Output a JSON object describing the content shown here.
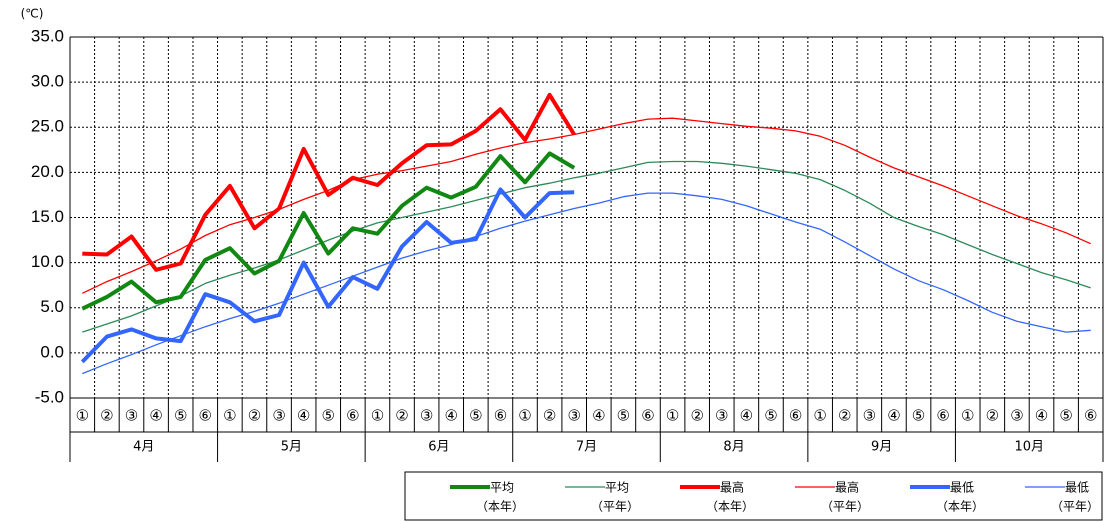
{
  "chart_data": {
    "type": "line",
    "unit": "(℃)",
    "categories": [
      "①",
      "②",
      "③",
      "④",
      "⑤",
      "⑥",
      "①",
      "②",
      "③",
      "④",
      "⑤",
      "⑥",
      "①",
      "②",
      "③",
      "④",
      "⑤",
      "⑥",
      "①",
      "②",
      "③",
      "④",
      "⑤",
      "⑥",
      "①",
      "②",
      "③",
      "④",
      "⑤",
      "⑥",
      "①",
      "②",
      "③",
      "④",
      "⑤",
      "⑥",
      "①",
      "②",
      "③",
      "④",
      "⑤",
      "⑥"
    ],
    "months": [
      "4月",
      "5月",
      "6月",
      "7月",
      "8月",
      "9月",
      "10月"
    ],
    "ylim": [
      -5,
      35
    ],
    "yticks": [
      {
        "value": -5,
        "label": "-5.0"
      },
      {
        "value": 0,
        "label": "0.0"
      },
      {
        "value": 5,
        "label": "5.0"
      },
      {
        "value": 10,
        "label": "10.0"
      },
      {
        "value": 15,
        "label": "15.0"
      },
      {
        "value": 20,
        "label": "20.0"
      },
      {
        "value": 25,
        "label": "25.0"
      },
      {
        "value": 30,
        "label": "30.0"
      },
      {
        "value": 35,
        "label": "35.0"
      }
    ],
    "grid": true,
    "series": [
      {
        "name": "平均",
        "period": "（本年）",
        "color": "#118811",
        "bold": true,
        "values": [
          4.9,
          6.2,
          7.9,
          5.6,
          6.2,
          10.3,
          11.6,
          8.8,
          10.2,
          15.5,
          11.0,
          13.8,
          13.2,
          16.3,
          18.3,
          17.2,
          18.4,
          21.8,
          18.9,
          22.1,
          20.5,
          null,
          null,
          null,
          null,
          null,
          null,
          null,
          null,
          null,
          null,
          null,
          null,
          null,
          null,
          null,
          null,
          null,
          null,
          null,
          null,
          null
        ]
      },
      {
        "name": "平均",
        "period": "（平年）",
        "color": "#2e8b57",
        "bold": false,
        "values": [
          2.3,
          3.2,
          4.1,
          5.2,
          6.3,
          7.7,
          8.6,
          9.4,
          10.3,
          11.4,
          12.5,
          13.5,
          14.4,
          15.0,
          15.6,
          16.2,
          16.9,
          17.6,
          18.3,
          18.8,
          19.4,
          19.9,
          20.5,
          21.1,
          21.2,
          21.2,
          21.0,
          20.7,
          20.3,
          19.9,
          19.2,
          18.0,
          16.6,
          15.0,
          14.0,
          13.1,
          12.0,
          10.9,
          9.9,
          8.9,
          8.1,
          7.2
        ]
      },
      {
        "name": "最高",
        "period": "（本年）",
        "color": "#ff0000",
        "bold": true,
        "values": [
          11.0,
          10.9,
          12.9,
          9.2,
          9.9,
          15.3,
          18.5,
          13.8,
          16.0,
          22.6,
          17.5,
          19.4,
          18.6,
          21.0,
          23.0,
          23.1,
          24.6,
          27.0,
          23.6,
          28.6,
          24.2,
          null,
          null,
          null,
          null,
          null,
          null,
          null,
          null,
          null,
          null,
          null,
          null,
          null,
          null,
          null,
          null,
          null,
          null,
          null,
          null,
          null
        ]
      },
      {
        "name": "最高",
        "period": "（平年）",
        "color": "#ff0000",
        "bold": false,
        "values": [
          6.6,
          7.9,
          9.0,
          10.2,
          11.5,
          13.0,
          14.2,
          15.0,
          15.9,
          17.0,
          18.0,
          19.2,
          19.8,
          20.2,
          20.7,
          21.2,
          22.0,
          22.7,
          23.3,
          23.7,
          24.2,
          24.8,
          25.4,
          25.9,
          26.0,
          25.7,
          25.4,
          25.1,
          24.9,
          24.6,
          24.0,
          23.0,
          21.7,
          20.5,
          19.5,
          18.5,
          17.4,
          16.3,
          15.2,
          14.3,
          13.3,
          12.1
        ]
      },
      {
        "name": "最低",
        "period": "（本年）",
        "color": "#3366ff",
        "bold": true,
        "values": [
          -1.0,
          1.8,
          2.6,
          1.6,
          1.3,
          6.5,
          5.6,
          3.5,
          4.2,
          10.0,
          5.1,
          8.4,
          7.1,
          11.8,
          14.5,
          12.2,
          12.6,
          18.1,
          15.0,
          17.7,
          17.8,
          null,
          null,
          null,
          null,
          null,
          null,
          null,
          null,
          null,
          null,
          null,
          null,
          null,
          null,
          null,
          null,
          null,
          null,
          null,
          null,
          null
        ]
      },
      {
        "name": "最低",
        "period": "（平年）",
        "color": "#3366ff",
        "bold": false,
        "values": [
          -2.3,
          -1.2,
          -0.2,
          0.9,
          1.9,
          2.9,
          3.8,
          4.6,
          5.5,
          6.5,
          7.5,
          8.5,
          9.5,
          10.5,
          11.3,
          12.0,
          12.9,
          13.8,
          14.6,
          15.3,
          16.0,
          16.6,
          17.3,
          17.7,
          17.7,
          17.4,
          17.0,
          16.3,
          15.4,
          14.5,
          13.7,
          12.3,
          10.8,
          9.3,
          8.0,
          7.0,
          5.8,
          4.5,
          3.5,
          2.9,
          2.3,
          2.5
        ]
      }
    ]
  }
}
